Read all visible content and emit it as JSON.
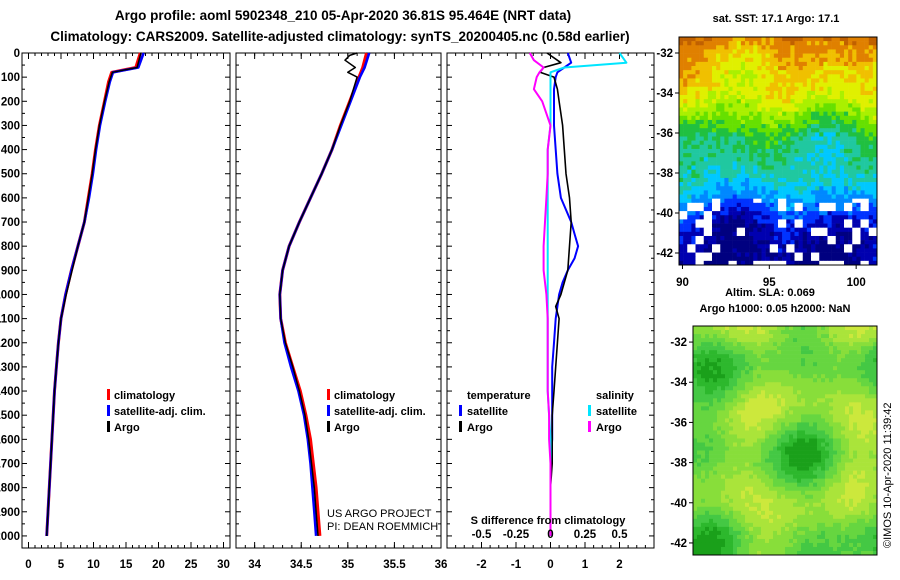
{
  "header": {
    "title_line1": "Argo profile: aoml 5902348_210 05-Apr-2020 36.81S 95.464E (NRT data)",
    "title_line2": "Climatology: CARS2009. Satellite-adjusted climatology: synTS_20200405.nc (0.58d earlier)"
  },
  "colors": {
    "climatology": "#ff0000",
    "satellite_adj": "#0000ff",
    "argo": "#000000",
    "salinity_satellite": "#00e5ff",
    "salinity_argo": "#ff00ff"
  },
  "chart_data": [
    {
      "type": "line",
      "name": "temperature-profile",
      "ylabel_ticks": [
        "0",
        "100",
        "200",
        "300",
        "400",
        "500",
        "600",
        "700",
        "800",
        "900",
        "1000",
        "1100",
        "1200",
        "1300",
        "1400",
        "1500",
        "1600",
        "1700",
        "1800",
        "1900",
        "2000"
      ],
      "ylim": [
        0,
        2050
      ],
      "xlim": [
        -1,
        31
      ],
      "xticks": [
        0,
        5,
        10,
        15,
        20,
        25,
        30
      ],
      "legend": [
        "climatology",
        "satellite-adj. clim.",
        "Argo"
      ],
      "series": [
        {
          "name": "climatology",
          "depth": [
            0,
            60,
            80,
            120,
            200,
            300,
            400,
            500,
            600,
            700,
            800,
            900,
            1000,
            1100,
            1200,
            1300,
            1400,
            1500,
            1600,
            1700,
            1800,
            1900,
            2000
          ],
          "values": [
            17.2,
            16.5,
            12.8,
            12.3,
            11.7,
            10.9,
            10.3,
            9.8,
            9.2,
            8.6,
            7.6,
            6.6,
            5.7,
            5.0,
            4.6,
            4.3,
            4.0,
            3.8,
            3.6,
            3.4,
            3.2,
            3.0,
            2.8
          ]
        },
        {
          "name": "satellite-adj. clim.",
          "depth": [
            0,
            60,
            80,
            120,
            200,
            300,
            400,
            500,
            600,
            700,
            800,
            900,
            1000,
            1100,
            1200,
            1300,
            1400,
            1500,
            1600,
            1700,
            1800,
            1900,
            2000
          ],
          "values": [
            17.7,
            16.9,
            13.0,
            12.5,
            11.8,
            11.0,
            10.4,
            9.9,
            9.3,
            8.6,
            7.6,
            6.6,
            5.7,
            5.0,
            4.6,
            4.3,
            4.0,
            3.8,
            3.6,
            3.4,
            3.2,
            3.0,
            2.8
          ]
        },
        {
          "name": "Argo",
          "depth": [
            0,
            60,
            80,
            120,
            200,
            300,
            400,
            500,
            600,
            700,
            800,
            900,
            1000,
            1100,
            1200,
            1300,
            1400,
            1500,
            1600,
            1700,
            1800,
            1900,
            2000
          ],
          "values": [
            17.3,
            16.7,
            12.9,
            12.4,
            11.7,
            10.9,
            10.3,
            9.8,
            9.2,
            8.6,
            7.6,
            6.7,
            5.8,
            5.0,
            4.6,
            4.3,
            4.0,
            3.8,
            3.6,
            3.4,
            3.2,
            3.0,
            2.8
          ]
        }
      ]
    },
    {
      "type": "line",
      "name": "salinity-profile",
      "ylim": [
        0,
        2050
      ],
      "xlim": [
        33.8,
        36.0
      ],
      "xticks": [
        34,
        34.5,
        35,
        35.5,
        36
      ],
      "legend": [
        "climatology",
        "satellite-adj. clim.",
        "Argo"
      ],
      "series": [
        {
          "name": "climatology",
          "depth": [
            0,
            60,
            100,
            200,
            300,
            400,
            500,
            600,
            700,
            800,
            900,
            1000,
            1100,
            1200,
            1300,
            1400,
            1500,
            1600,
            1700,
            1800,
            1900,
            2000
          ],
          "values": [
            35.2,
            35.16,
            35.12,
            35.02,
            34.92,
            34.83,
            34.72,
            34.6,
            34.48,
            34.37,
            34.3,
            34.27,
            34.28,
            34.33,
            34.41,
            34.49,
            34.55,
            34.6,
            34.63,
            34.66,
            34.68,
            34.7
          ]
        },
        {
          "name": "satellite-adj. clim.",
          "depth": [
            0,
            60,
            100,
            200,
            300,
            400,
            500,
            600,
            700,
            800,
            900,
            1000,
            1100,
            1200,
            1300,
            1400,
            1500,
            1600,
            1700,
            1800,
            1900,
            2000
          ],
          "values": [
            35.23,
            35.18,
            35.13,
            35.03,
            34.93,
            34.83,
            34.72,
            34.6,
            34.48,
            34.37,
            34.3,
            34.27,
            34.28,
            34.32,
            34.39,
            34.47,
            34.53,
            34.57,
            34.6,
            34.62,
            34.64,
            34.66
          ]
        },
        {
          "name": "Argo",
          "depth": [
            0,
            10,
            30,
            60,
            80,
            100,
            150,
            200,
            300,
            400,
            500,
            600,
            700,
            800,
            900,
            1000,
            1100,
            1200,
            1300,
            1400,
            1500,
            1600,
            1700,
            1800,
            1900,
            2000
          ],
          "values": [
            35.1,
            35.02,
            34.97,
            35.08,
            35.0,
            35.1,
            35.06,
            35.02,
            34.92,
            34.83,
            34.72,
            34.6,
            34.48,
            34.37,
            34.3,
            34.27,
            34.28,
            34.33,
            34.41,
            34.48,
            34.54,
            34.58,
            34.61,
            34.64,
            34.66,
            34.68
          ]
        }
      ]
    },
    {
      "type": "line",
      "name": "difference-profile",
      "ylim": [
        0,
        2050
      ],
      "xlim": [
        -3,
        3
      ],
      "xticks_temperature": [
        -2,
        -1,
        0,
        1,
        2
      ],
      "xticks_salinity": [
        -0.5,
        -0.25,
        0,
        0.25,
        0.5
      ],
      "xlabel": "S difference from climatology",
      "legend_temperature_title": "temperature",
      "legend_salinity_title": "salinity",
      "legend": [
        "satellite",
        "Argo",
        "satellite",
        "Argo"
      ],
      "series": [
        {
          "name": "temperature satellite",
          "depth": [
            0,
            40,
            60,
            80,
            100,
            150,
            200,
            300,
            400,
            500,
            600,
            700,
            750,
            800,
            850,
            900,
            950,
            1000,
            1100,
            1200,
            1300,
            1400,
            1500,
            1600,
            1700,
            1800,
            1900,
            2000
          ],
          "values": [
            0.5,
            0.6,
            0.4,
            0.2,
            0.15,
            0.1,
            0.1,
            0.1,
            0.15,
            0.2,
            0.3,
            0.6,
            0.7,
            0.8,
            0.7,
            0.5,
            0.35,
            0.25,
            0.15,
            0.1,
            0.05,
            0.05,
            0.05,
            0.05,
            0.0,
            0.0,
            0.0,
            0.0
          ]
        },
        {
          "name": "temperature Argo",
          "depth": [
            0,
            40,
            60,
            80,
            100,
            150,
            200,
            300,
            400,
            500,
            600,
            700,
            800,
            900,
            1000,
            1050,
            1100,
            1200,
            1300,
            1400,
            1500,
            1600,
            1700,
            1800,
            1900,
            2000
          ],
          "values": [
            -0.1,
            0.3,
            -0.2,
            -0.3,
            0.1,
            0.2,
            0.25,
            0.35,
            0.4,
            0.45,
            0.55,
            0.6,
            0.55,
            0.5,
            0.3,
            0.15,
            0.25,
            0.2,
            0.15,
            0.1,
            0.05,
            0.05,
            0.05,
            0.0,
            0.0,
            0.0
          ]
        },
        {
          "name": "salinity satellite",
          "depth": [
            0,
            40,
            60,
            80,
            100,
            200,
            300,
            400,
            500,
            600,
            700,
            800,
            900,
            1000,
            1200,
            1400,
            1600,
            1800,
            2000
          ],
          "values": [
            0.5,
            0.55,
            0.1,
            0.0,
            0.0,
            0.0,
            0.0,
            -0.02,
            -0.02,
            -0.02,
            -0.02,
            -0.02,
            -0.02,
            -0.02,
            -0.02,
            -0.02,
            0.0,
            0.0,
            0.0
          ]
        },
        {
          "name": "salinity Argo",
          "depth": [
            0,
            30,
            60,
            80,
            100,
            150,
            200,
            300,
            400,
            500,
            600,
            700,
            800,
            900,
            1000,
            1100,
            1200,
            1300,
            1400,
            1500,
            1600,
            1700,
            1800,
            1900,
            2000
          ],
          "values": [
            -0.15,
            -0.12,
            -0.05,
            -0.08,
            -0.1,
            -0.12,
            -0.06,
            0.0,
            -0.02,
            -0.02,
            -0.03,
            -0.04,
            -0.05,
            -0.05,
            -0.03,
            -0.02,
            -0.02,
            -0.02,
            -0.02,
            -0.01,
            -0.01,
            0.0,
            0.0,
            0.0,
            0.0
          ]
        }
      ]
    },
    {
      "type": "heatmap",
      "name": "sst-map",
      "title": "sat. SST: 17.1 Argo: 17.1",
      "xticks": [
        90,
        95,
        100
      ],
      "yticks": [
        -32,
        -34,
        -36,
        -38,
        -40,
        -42
      ],
      "xlim": [
        89.8,
        101.2
      ],
      "ylim": [
        -42.6,
        -31.2
      ]
    },
    {
      "type": "heatmap",
      "name": "sla-map",
      "title_line1": "Altim. SLA: 0.069",
      "title_line2": "Argo h1000: 0.05 h2000: NaN",
      "yticks": [
        -32,
        -34,
        -36,
        -38,
        -40,
        -42
      ],
      "ylim": [
        -42.6,
        -31.2
      ]
    }
  ],
  "annotations": {
    "project_line1": "US ARGO PROJECT",
    "project_line2": "PI: DEAN ROEMMICH",
    "imos_stamp": "©IMOS 10-Apr-2020 11:39:42"
  }
}
